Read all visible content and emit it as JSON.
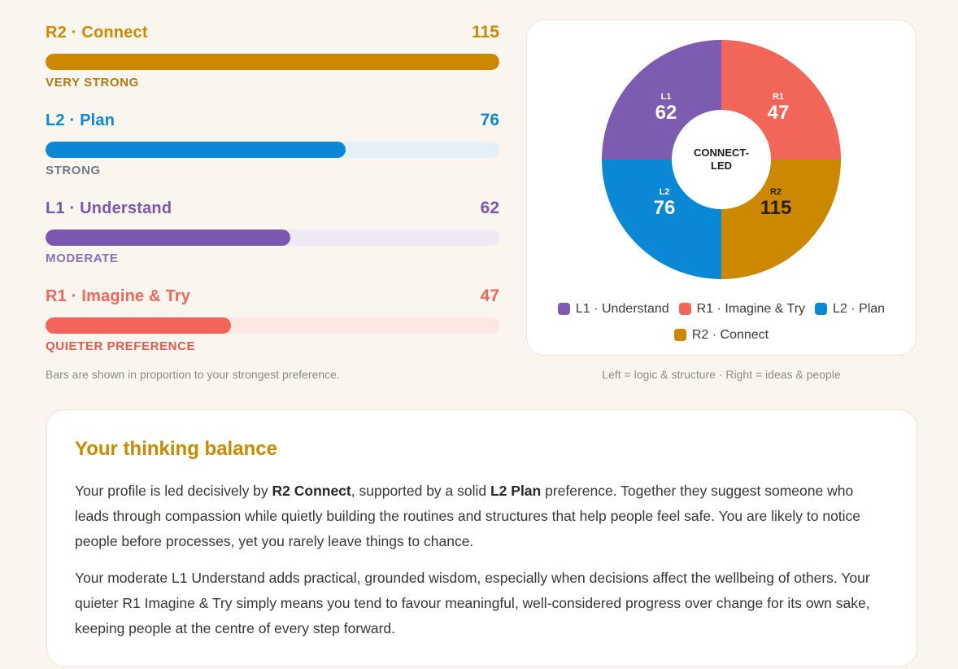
{
  "bars": [
    {
      "label": "R2 · Connect",
      "score": "115",
      "value": 115,
      "fraction": 1.0,
      "level": "VERY STRONG",
      "color": "#cc8800",
      "track": "#f6ead2",
      "level_color": "#b07c10"
    },
    {
      "label": "L2 · Plan",
      "score": "76",
      "value": 76,
      "fraction": 0.661,
      "level": "STRONG",
      "color": "#0a88d6",
      "track": "#e3eff9",
      "level_color": "#6e7b86"
    },
    {
      "label": "L1 · Understand",
      "score": "62",
      "value": 62,
      "fraction": 0.539,
      "level": "MODERATE",
      "color": "#7b57b0",
      "track": "#efe9f6",
      "level_color": "#8a70b8"
    },
    {
      "label": "R1 · Imagine & Try",
      "score": "47",
      "value": 47,
      "fraction": 0.409,
      "level": "QUIETER PREFERENCE",
      "color": "#f2665a",
      "track": "#fde7e3",
      "level_color": "#e05a4e"
    }
  ],
  "bars_note": "Bars are shown in proportion to your strongest preference.",
  "chart_data": {
    "type": "pie",
    "center_label_lines": [
      "CONNECT-",
      "LED"
    ],
    "slices": [
      {
        "code": "L1",
        "value": 62,
        "color": "#7b5cb0"
      },
      {
        "code": "R1",
        "value": 47,
        "color": "#f2665a"
      },
      {
        "code": "R2",
        "value": 115,
        "color": "#cc8800"
      },
      {
        "code": "L2",
        "value": 76,
        "color": "#0a88d6"
      }
    ],
    "legend": [
      {
        "label": "L1 · Understand",
        "color": "#7b5cb0"
      },
      {
        "label": "R1 · Imagine & Try",
        "color": "#f2665a"
      },
      {
        "label": "L2 · Plan",
        "color": "#0a88d6"
      },
      {
        "label": "R2 · Connect",
        "color": "#cc8800"
      }
    ],
    "legend_placement": "bottom",
    "note": "Left = logic & structure · Right = ideas & people"
  },
  "balance": {
    "title": "Your thinking balance",
    "p1": {
      "t1": "Your profile is led decisively by ",
      "b1": "R2 Connect",
      "t2": ", supported by a solid ",
      "b2": "L2 Plan",
      "t3": " preference. Together they suggest someone who leads through compassion while quietly building the routines and structures that help people feel safe. You are likely to notice people before processes, yet you rarely leave things to chance."
    },
    "p2": "Your moderate L1 Understand adds practical, grounded wisdom, especially when decisions affect the wellbeing of others. Your quieter R1 Imagine & Try simply means you tend to favour meaningful, well-considered progress over change for its own sake, keeping people at the centre of every step forward."
  }
}
